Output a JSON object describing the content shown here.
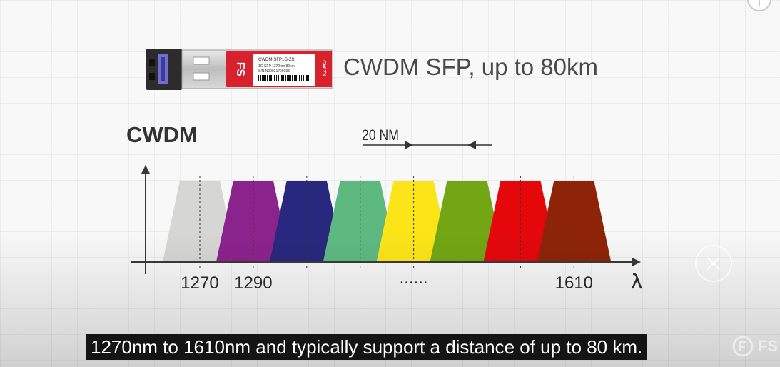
{
  "video": {
    "title": "CWDM SFP, up to 80km",
    "caption": "1270nm to 1610nm and typically support a distance of up to 80 km.",
    "watermark_text": "FS"
  },
  "module": {
    "brand": "FS",
    "model": "CWDM-SFP1G-ZX",
    "spec": "1G SFP 1270nm 80km",
    "serial": "S/N:N00021700038",
    "side_label": "CW ZX",
    "label_color": "#d7222d"
  },
  "chart_data": {
    "type": "diagram",
    "title": "CWDM",
    "x_axis_symbol": "λ",
    "spacing_label": "20 NM",
    "tick_labels": [
      "1270",
      "1290",
      "......",
      "1610"
    ],
    "channels": [
      {
        "color": "#d6d6d4"
      },
      {
        "color": "#8b238d"
      },
      {
        "color": "#28287e"
      },
      {
        "color": "#5eb981"
      },
      {
        "color": "#fbe518"
      },
      {
        "color": "#72a614"
      },
      {
        "color": "#e4080b"
      },
      {
        "color": "#8d2408"
      }
    ]
  },
  "icons": {
    "close": "close-icon",
    "info": "info-icon",
    "watermark": "fs-logo-icon"
  }
}
